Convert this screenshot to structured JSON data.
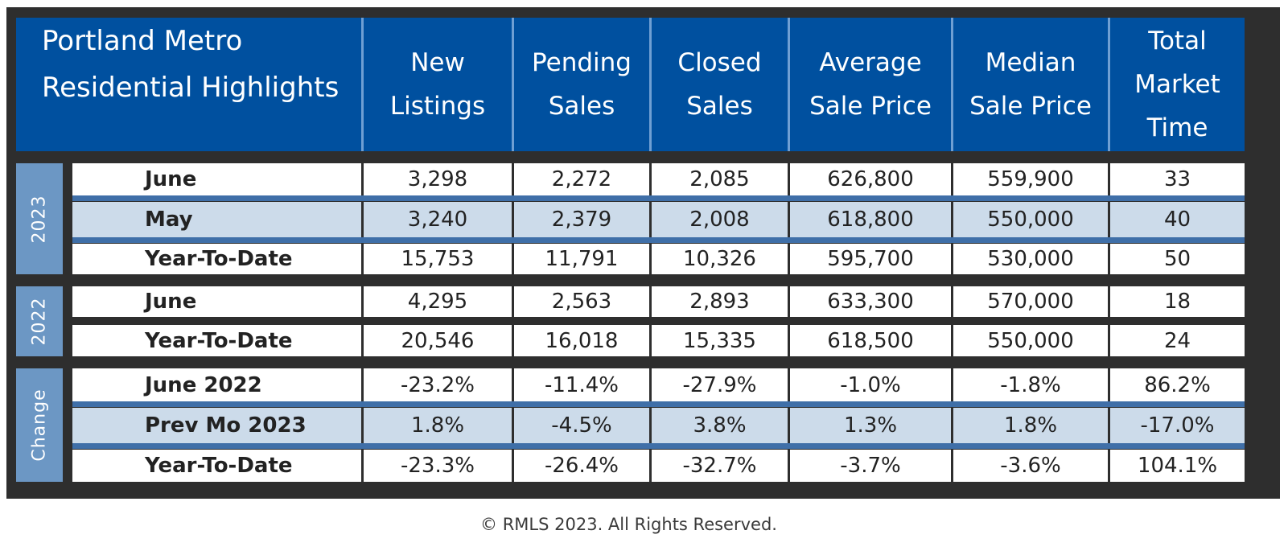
{
  "header": {
    "title_line1": "Portland Metro",
    "title_line2": "Residential Highlights",
    "columns": [
      [
        "New",
        "Listings"
      ],
      [
        "Pending",
        "Sales"
      ],
      [
        "Closed",
        "Sales"
      ],
      [
        "Average",
        "Sale Price"
      ],
      [
        "Median",
        "Sale Price"
      ],
      [
        "Total",
        "Market",
        "Time"
      ]
    ]
  },
  "groups": [
    {
      "label": "2023",
      "rows": [
        {
          "label": "June",
          "values": [
            "3,298",
            "2,272",
            "2,085",
            "626,800",
            "559,900",
            "33"
          ]
        },
        {
          "label": "May",
          "values": [
            "3,240",
            "2,379",
            "2,008",
            "618,800",
            "550,000",
            "40"
          ]
        },
        {
          "label": "Year-To-Date",
          "values": [
            "15,753",
            "11,791",
            "10,326",
            "595,700",
            "530,000",
            "50"
          ]
        }
      ]
    },
    {
      "label": "2022",
      "rows": [
        {
          "label": "June",
          "values": [
            "4,295",
            "2,563",
            "2,893",
            "633,300",
            "570,000",
            "18"
          ]
        },
        {
          "label": "Year-To-Date",
          "values": [
            "20,546",
            "16,018",
            "15,335",
            "618,500",
            "550,000",
            "24"
          ]
        }
      ]
    },
    {
      "label": "Change",
      "rows": [
        {
          "label": "June 2022",
          "values": [
            "-23.2%",
            "-11.4%",
            "-27.9%",
            "-1.0%",
            "-1.8%",
            "86.2%"
          ]
        },
        {
          "label": "Prev Mo 2023",
          "values": [
            "1.8%",
            "-4.5%",
            "3.8%",
            "1.3%",
            "1.8%",
            "-17.0%"
          ]
        },
        {
          "label": "Year-To-Date",
          "values": [
            "-23.3%",
            "-26.4%",
            "-32.7%",
            "-3.7%",
            "-3.6%",
            "104.1%"
          ]
        }
      ]
    }
  ],
  "footer": "© RMLS 2023. All Rights Reserved.",
  "colors": {
    "header_bg": "#00509f",
    "side_label_bg": "#6c97c4",
    "shaded_row_bg": "#ccdbea",
    "separator_bar": "#3f6fa8",
    "frame": "#2e2e2e"
  }
}
